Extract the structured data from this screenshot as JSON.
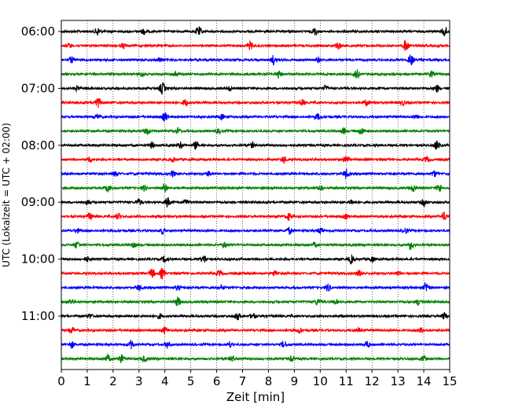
{
  "chart_data": {
    "type": "line",
    "title": "",
    "xlabel": "Zeit  [min]",
    "ylabel": "UTC (Lokalzeit = UTC + 02:00)",
    "xlim": [
      0,
      15
    ],
    "x_ticks": [
      0,
      1,
      2,
      3,
      4,
      5,
      6,
      7,
      8,
      9,
      10,
      11,
      12,
      13,
      14,
      15
    ],
    "x_grid": "vertical-dotted",
    "y_tick_labels": [
      "06:00",
      "07:00",
      "08:00",
      "09:00",
      "10:00",
      "11:00"
    ],
    "trace_colors": [
      "#000000",
      "#ff0000",
      "#0000ff",
      "#008000"
    ],
    "traces": [
      {
        "start": "06:00",
        "events": [
          [
            1.4,
            0.7
          ],
          [
            3.2,
            0.5
          ],
          [
            5.3,
            0.8
          ],
          [
            9.8,
            0.6
          ],
          [
            14.8,
            0.9
          ]
        ]
      },
      {
        "start": "06:15",
        "events": [
          [
            0.3,
            0.4
          ],
          [
            2.4,
            0.4
          ],
          [
            7.3,
            0.7
          ],
          [
            10.7,
            0.6
          ],
          [
            13.3,
            1.0
          ]
        ]
      },
      {
        "start": "06:30",
        "events": [
          [
            0.4,
            0.5
          ],
          [
            3.8,
            0.4
          ],
          [
            8.2,
            0.8
          ],
          [
            9.9,
            0.4
          ],
          [
            13.5,
            0.9
          ]
        ]
      },
      {
        "start": "06:45",
        "events": [
          [
            3.1,
            0.5
          ],
          [
            4.4,
            0.5
          ],
          [
            8.4,
            0.7
          ],
          [
            11.4,
            0.8
          ],
          [
            14.3,
            0.5
          ]
        ]
      },
      {
        "start": "07:00",
        "events": [
          [
            0.6,
            0.4
          ],
          [
            3.9,
            1.0
          ],
          [
            6.5,
            0.4
          ],
          [
            10.2,
            0.4
          ],
          [
            14.5,
            0.6
          ]
        ]
      },
      {
        "start": "07:15",
        "events": [
          [
            1.4,
            1.0
          ],
          [
            4.8,
            0.6
          ],
          [
            9.3,
            0.5
          ],
          [
            11.8,
            0.5
          ],
          [
            13.2,
            0.4
          ]
        ]
      },
      {
        "start": "07:30",
        "events": [
          [
            1.4,
            0.4
          ],
          [
            4.0,
            0.8
          ],
          [
            6.2,
            0.4
          ],
          [
            9.9,
            0.5
          ],
          [
            13.7,
            0.4
          ]
        ]
      },
      {
        "start": "07:45",
        "events": [
          [
            3.3,
            0.6
          ],
          [
            4.5,
            0.5
          ],
          [
            6.1,
            0.4
          ],
          [
            10.9,
            0.5
          ],
          [
            11.6,
            0.6
          ]
        ]
      },
      {
        "start": "08:00",
        "events": [
          [
            3.5,
            0.5
          ],
          [
            4.6,
            0.5
          ],
          [
            5.2,
            0.6
          ],
          [
            7.4,
            0.4
          ],
          [
            14.5,
            0.8
          ]
        ]
      },
      {
        "start": "08:15",
        "events": [
          [
            1.1,
            0.4
          ],
          [
            4.3,
            0.4
          ],
          [
            8.6,
            0.6
          ],
          [
            11.0,
            0.7
          ],
          [
            14.1,
            0.5
          ]
        ]
      },
      {
        "start": "08:30",
        "events": [
          [
            2.1,
            0.4
          ],
          [
            4.3,
            0.5
          ],
          [
            5.7,
            0.4
          ],
          [
            11.0,
            0.8
          ],
          [
            14.4,
            0.5
          ]
        ]
      },
      {
        "start": "08:45",
        "events": [
          [
            1.8,
            0.6
          ],
          [
            3.2,
            0.5
          ],
          [
            4.0,
            0.7
          ],
          [
            10.0,
            0.5
          ],
          [
            13.6,
            0.6
          ],
          [
            14.6,
            0.7
          ]
        ]
      },
      {
        "start": "09:00",
        "events": [
          [
            1.0,
            0.4
          ],
          [
            3.0,
            0.5
          ],
          [
            4.1,
            0.8
          ],
          [
            4.8,
            0.5
          ],
          [
            11.2,
            0.4
          ],
          [
            14.0,
            0.6
          ]
        ]
      },
      {
        "start": "09:15",
        "events": [
          [
            1.1,
            0.6
          ],
          [
            2.2,
            0.5
          ],
          [
            8.8,
            0.6
          ],
          [
            11.0,
            0.4
          ],
          [
            14.8,
            0.7
          ]
        ]
      },
      {
        "start": "09:30",
        "events": [
          [
            0.6,
            0.4
          ],
          [
            3.9,
            0.5
          ],
          [
            8.8,
            0.6
          ],
          [
            10.0,
            0.5
          ],
          [
            13.3,
            0.4
          ]
        ]
      },
      {
        "start": "09:45",
        "events": [
          [
            0.6,
            0.6
          ],
          [
            2.8,
            0.4
          ],
          [
            6.3,
            0.4
          ],
          [
            9.8,
            0.4
          ],
          [
            13.5,
            0.8
          ]
        ]
      },
      {
        "start": "10:00",
        "events": [
          [
            1.0,
            0.4
          ],
          [
            4.0,
            0.5
          ],
          [
            5.5,
            0.7
          ],
          [
            11.2,
            0.7
          ],
          [
            12.0,
            0.5
          ]
        ]
      },
      {
        "start": "10:15",
        "events": [
          [
            3.5,
            0.8
          ],
          [
            3.9,
            0.9
          ],
          [
            6.1,
            0.5
          ],
          [
            8.2,
            0.4
          ],
          [
            11.5,
            0.5
          ],
          [
            13.0,
            0.4
          ]
        ]
      },
      {
        "start": "10:30",
        "events": [
          [
            3.0,
            0.5
          ],
          [
            4.5,
            0.4
          ],
          [
            6.2,
            0.4
          ],
          [
            10.3,
            0.6
          ],
          [
            14.1,
            0.9
          ]
        ]
      },
      {
        "start": "10:45",
        "events": [
          [
            0.4,
            0.5
          ],
          [
            4.5,
            0.8
          ],
          [
            9.9,
            0.5
          ],
          [
            10.6,
            0.4
          ],
          [
            13.8,
            0.5
          ]
        ]
      },
      {
        "start": "11:00",
        "events": [
          [
            1.1,
            0.4
          ],
          [
            3.8,
            0.4
          ],
          [
            6.8,
            0.6
          ],
          [
            7.4,
            0.5
          ],
          [
            14.8,
            0.6
          ]
        ]
      },
      {
        "start": "11:15",
        "events": [
          [
            0.4,
            0.5
          ],
          [
            4.0,
            0.6
          ],
          [
            9.2,
            0.5
          ],
          [
            11.5,
            0.4
          ],
          [
            13.9,
            0.4
          ]
        ]
      },
      {
        "start": "11:30",
        "events": [
          [
            0.4,
            0.6
          ],
          [
            2.7,
            0.7
          ],
          [
            4.1,
            0.6
          ],
          [
            6.5,
            0.5
          ],
          [
            8.6,
            0.6
          ],
          [
            11.8,
            0.6
          ]
        ]
      },
      {
        "start": "11:45",
        "events": [
          [
            1.8,
            0.6
          ],
          [
            2.3,
            0.8
          ],
          [
            3.2,
            0.5
          ],
          [
            6.6,
            0.4
          ],
          [
            8.9,
            0.4
          ],
          [
            14.0,
            0.5
          ]
        ]
      }
    ]
  }
}
